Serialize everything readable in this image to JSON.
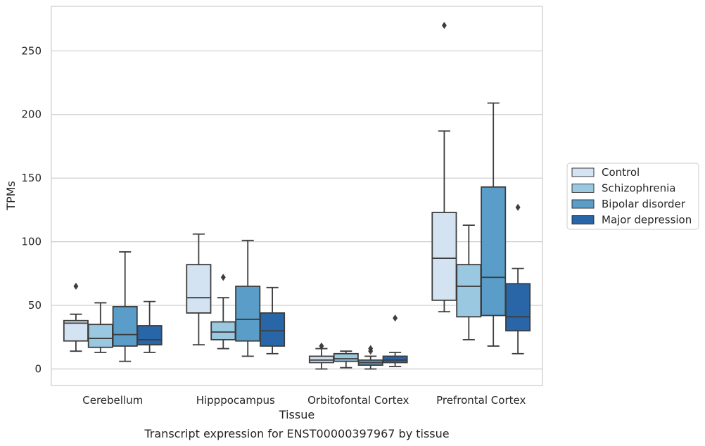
{
  "caption": "Transcript expression for ENST00000397967 by tissue",
  "chart_data": {
    "type": "boxplot",
    "title": "",
    "xlabel": "Tissue",
    "ylabel": "TPMs",
    "ylim": [
      -13,
      285
    ],
    "yticks": [
      0,
      50,
      100,
      150,
      200,
      250
    ],
    "grid": true,
    "legend_position": "right",
    "categories": [
      "Cerebellum",
      "Hipppocampus",
      "Orbitofontal Cortex",
      "Prefrontal Cortex"
    ],
    "series": [
      {
        "name": "Control",
        "color": "#d4e3f2",
        "boxes": [
          {
            "whislo": 14,
            "q1": 22,
            "med": 36,
            "q3": 38,
            "whishi": 43,
            "fliers": [
              65
            ]
          },
          {
            "whislo": 19,
            "q1": 44,
            "med": 56,
            "q3": 82,
            "whishi": 106,
            "fliers": []
          },
          {
            "whislo": 0,
            "q1": 5,
            "med": 7,
            "q3": 10,
            "whishi": 16,
            "fliers": [
              18
            ]
          },
          {
            "whislo": 45,
            "q1": 54,
            "med": 87,
            "q3": 123,
            "whishi": 187,
            "fliers": [
              270
            ]
          }
        ]
      },
      {
        "name": "Schizophrenia",
        "color": "#9ac8e0",
        "boxes": [
          {
            "whislo": 13,
            "q1": 17,
            "med": 24,
            "q3": 35,
            "whishi": 52,
            "fliers": []
          },
          {
            "whislo": 16,
            "q1": 23,
            "med": 29,
            "q3": 37,
            "whishi": 56,
            "fliers": [
              72
            ]
          },
          {
            "whislo": 1,
            "q1": 6,
            "med": 8,
            "q3": 12,
            "whishi": 14,
            "fliers": []
          },
          {
            "whislo": 23,
            "q1": 41,
            "med": 65,
            "q3": 82,
            "whishi": 113,
            "fliers": []
          }
        ]
      },
      {
        "name": "Bipolar disorder",
        "color": "#5a9dc8",
        "boxes": [
          {
            "whislo": 6,
            "q1": 18,
            "med": 27,
            "q3": 49,
            "whishi": 92,
            "fliers": []
          },
          {
            "whislo": 10,
            "q1": 22,
            "med": 39,
            "q3": 65,
            "whishi": 101,
            "fliers": []
          },
          {
            "whislo": 0,
            "q1": 3,
            "med": 5,
            "q3": 7,
            "whishi": 10,
            "fliers": [
              14,
              16
            ]
          },
          {
            "whislo": 18,
            "q1": 42,
            "med": 72,
            "q3": 143,
            "whishi": 209,
            "fliers": []
          }
        ]
      },
      {
        "name": "Major depression",
        "color": "#2866a8",
        "boxes": [
          {
            "whislo": 13,
            "q1": 19,
            "med": 23,
            "q3": 34,
            "whishi": 53,
            "fliers": []
          },
          {
            "whislo": 12,
            "q1": 18,
            "med": 30,
            "q3": 44,
            "whishi": 64,
            "fliers": []
          },
          {
            "whislo": 2,
            "q1": 5,
            "med": 7,
            "q3": 10,
            "whishi": 13,
            "fliers": [
              40
            ]
          },
          {
            "whislo": 12,
            "q1": 30,
            "med": 41,
            "q3": 67,
            "whishi": 79,
            "fliers": [
              127
            ]
          }
        ]
      }
    ]
  }
}
